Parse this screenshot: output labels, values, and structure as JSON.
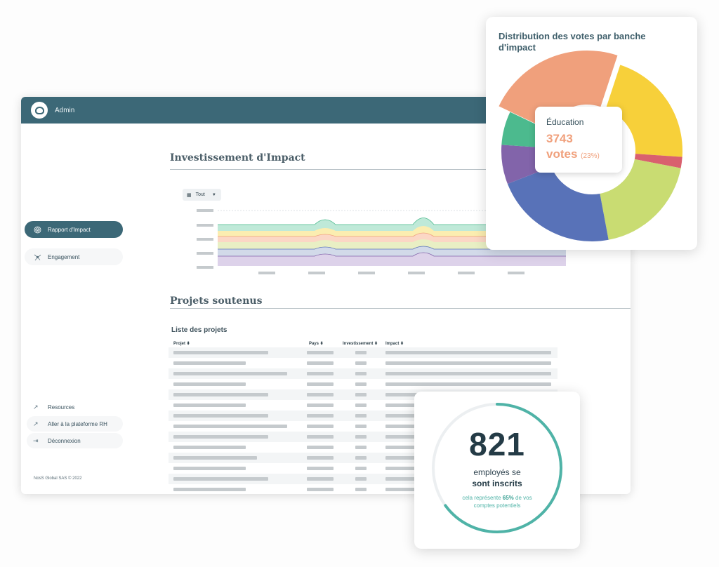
{
  "app": {
    "title": "Admin"
  },
  "sidebar": {
    "items": [
      {
        "label": "Rapport d'Impact",
        "icon": "fingerprint-icon"
      },
      {
        "label": "Engagement",
        "icon": "network-icon"
      }
    ],
    "footer_links": [
      {
        "label": "Resources",
        "icon": "external-link-icon"
      },
      {
        "label": "Aller à la plateforme RH",
        "icon": "external-link-icon"
      },
      {
        "label": "Déconnexion",
        "icon": "logout-icon"
      }
    ],
    "copyright": "NosS Global SAS © 2022"
  },
  "main": {
    "section1_title": "Investissement d'Impact",
    "filter": {
      "label": "Tout"
    },
    "section2_title": "Projets soutenus",
    "list_title": "Liste des projets",
    "columns": [
      "Projet",
      "Pays",
      "Investissement",
      "Impact"
    ]
  },
  "donut_card": {
    "title": "Distribution des votes par banche d'impact",
    "tooltip": {
      "category": "Éducation",
      "value": "3743",
      "unit": "votes",
      "percent": "(23%)"
    }
  },
  "employees_card": {
    "number": "821",
    "line1": "employés se",
    "line2": "sont inscrits",
    "sub_prefix": "cela représente ",
    "sub_percent": "65%",
    "sub_suffix": " de vos comptes potentiels",
    "progress": 0.65
  },
  "colors": {
    "primary": "#3c6877",
    "teal": "#4fb3a7",
    "orange": "#f0a07c",
    "yellow": "#f7d03a",
    "green": "#4cba8e",
    "blue": "#5872b8",
    "purple": "#8264aa",
    "lime": "#c9dc72",
    "red": "#d9606e"
  },
  "chart_data": {
    "type": "pie",
    "title": "Distribution des votes par banche d'impact",
    "series": [
      {
        "name": "Éducation",
        "value": 23
      },
      {
        "value": 21
      },
      {
        "value": 2
      },
      {
        "value": 19
      },
      {
        "value": 22
      },
      {
        "value": 7
      },
      {
        "value": 6
      }
    ]
  }
}
